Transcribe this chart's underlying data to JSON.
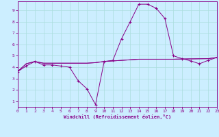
{
  "xlabel": "Windchill (Refroidissement éolien,°C)",
  "bg_color": "#cceeff",
  "line_color": "#880088",
  "grid_color": "#aadddd",
  "xlim": [
    0,
    23
  ],
  "ylim": [
    0.5,
    9.8
  ],
  "xticks": [
    0,
    1,
    2,
    3,
    4,
    5,
    6,
    7,
    8,
    9,
    10,
    11,
    12,
    13,
    14,
    15,
    16,
    17,
    18,
    19,
    20,
    21,
    22,
    23
  ],
  "yticks": [
    1,
    2,
    3,
    4,
    5,
    6,
    7,
    8,
    9
  ],
  "hours": [
    0,
    1,
    2,
    3,
    4,
    5,
    6,
    7,
    8,
    9,
    10,
    11,
    12,
    13,
    14,
    15,
    16,
    17,
    18,
    19,
    20,
    21,
    22,
    23
  ],
  "windchill": [
    3.6,
    4.1,
    4.5,
    4.2,
    4.2,
    4.1,
    4.0,
    2.8,
    2.1,
    0.7,
    4.5,
    4.6,
    6.5,
    8.0,
    9.55,
    9.55,
    9.2,
    8.3,
    5.0,
    4.75,
    4.55,
    4.3,
    4.6,
    4.85
  ],
  "temp": [
    3.6,
    4.3,
    4.5,
    4.35,
    4.35,
    4.35,
    4.35,
    4.35,
    4.35,
    4.4,
    4.5,
    4.55,
    4.6,
    4.65,
    4.7,
    4.7,
    4.7,
    4.7,
    4.7,
    4.72,
    4.73,
    4.74,
    4.75,
    4.85
  ],
  "temp2": [
    3.6,
    4.3,
    4.5,
    4.35,
    4.35,
    4.35,
    4.35,
    4.35,
    4.35,
    4.4,
    4.5,
    4.55,
    4.6,
    4.65,
    4.7,
    4.7,
    4.7,
    4.7,
    4.7,
    4.72,
    4.73,
    4.74,
    4.75,
    4.85
  ]
}
